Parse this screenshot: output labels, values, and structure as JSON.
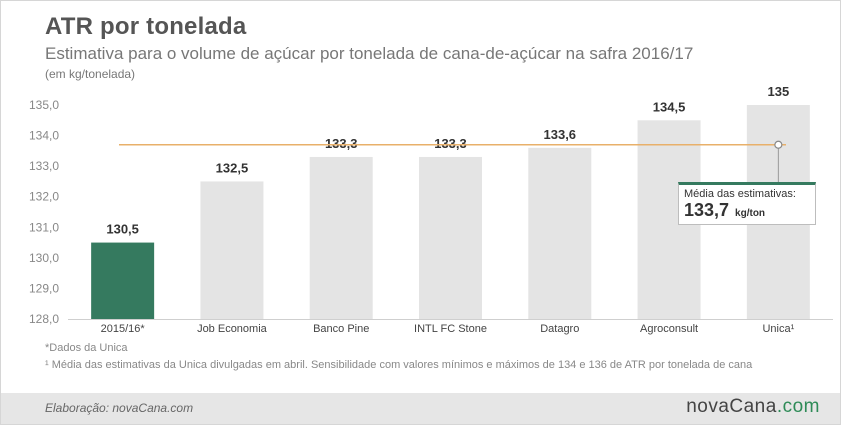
{
  "title": "ATR por tonelada",
  "subtitle": "Estimativa para o volume de açúcar por tonelada de cana-de-açúcar na safra 2016/17",
  "unit_label": "(em kg/tonelada)",
  "chart_data": {
    "type": "bar",
    "categories": [
      "2015/16*",
      "Job Economia",
      "Banco Pine",
      "INTL FC Stone",
      "Datagro",
      "Agroconsult",
      "Unica¹"
    ],
    "values": [
      130.5,
      132.5,
      133.3,
      133.3,
      133.6,
      134.5,
      135
    ],
    "value_labels": [
      "130,5",
      "132,5",
      "133,3",
      "133,3",
      "133,6",
      "134,5",
      "135"
    ],
    "ylim": [
      128,
      135
    ],
    "yticks": [
      "128,0",
      "129,0",
      "130,0",
      "131,0",
      "132,0",
      "133,0",
      "134,0",
      "135,0"
    ],
    "highlight_index": 0,
    "average_line": 133.7,
    "grid": false,
    "colors": {
      "bar": "#e4e4e4",
      "highlight": "#357a5f",
      "average": "#e8b06a"
    }
  },
  "callout": {
    "label": "Média das estimativas:",
    "value": "133,7",
    "unit": "kg/ton"
  },
  "notes": {
    "note1": "*Dados da Unica",
    "note2": "¹ Média das estimativas da Unica divulgadas em abril. Sensibilidade com valores mínimos e máximos de 134 e 136 de ATR por tonelada de cana"
  },
  "footer": {
    "credit": "Elaboração: novaCana.com",
    "logo_main": "novaCana",
    "logo_accent": ".com"
  }
}
